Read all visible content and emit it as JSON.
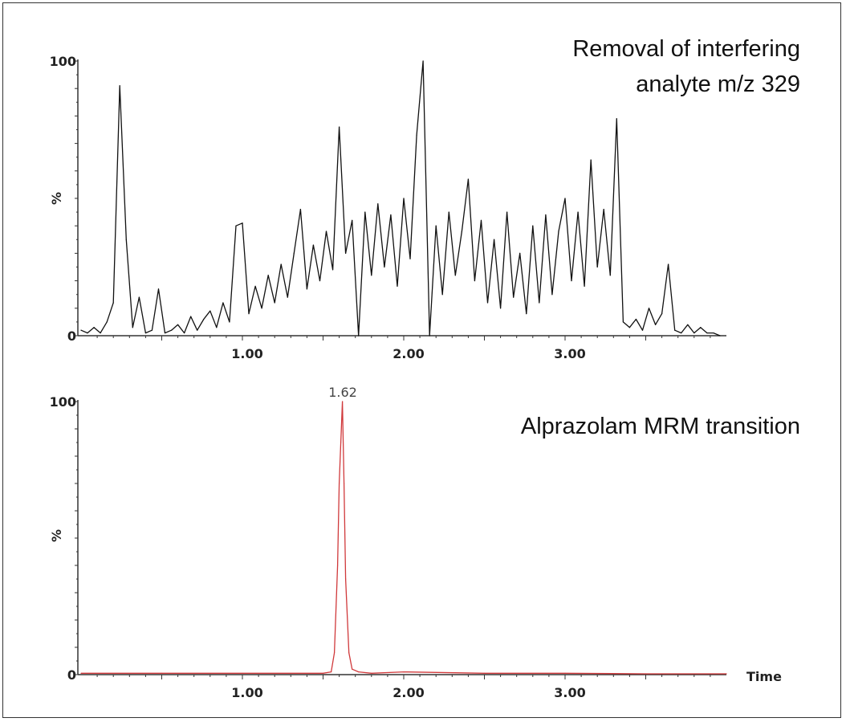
{
  "chart_data": [
    {
      "type": "line",
      "title": [
        "Removal of interfering",
        "analyte m/z 329"
      ],
      "xlabel": "",
      "ylabel": "%",
      "xlim": [
        0,
        4.0
      ],
      "ylim": [
        0,
        100
      ],
      "x_ticks": [
        "1.00",
        "2.00",
        "3.00"
      ],
      "x_tick_values": [
        1,
        2,
        3
      ],
      "y_ticks": [
        "0",
        "100"
      ],
      "y_tick_values": [
        0,
        100
      ],
      "grid": false,
      "color": "#111111",
      "series": [
        {
          "x": [
            0.0,
            0.04,
            0.08,
            0.12,
            0.16,
            0.2,
            0.24,
            0.28,
            0.32,
            0.36,
            0.4,
            0.44,
            0.48,
            0.52,
            0.56,
            0.6,
            0.64,
            0.68,
            0.72,
            0.76,
            0.8,
            0.84,
            0.88,
            0.92,
            0.96,
            1.0,
            1.04,
            1.08,
            1.12,
            1.16,
            1.2,
            1.24,
            1.28,
            1.32,
            1.36,
            1.4,
            1.44,
            1.48,
            1.52,
            1.56,
            1.6,
            1.64,
            1.68,
            1.72,
            1.76,
            1.8,
            1.84,
            1.88,
            1.92,
            1.96,
            2.0,
            2.04,
            2.08,
            2.12,
            2.16,
            2.2,
            2.24,
            2.28,
            2.32,
            2.36,
            2.4,
            2.44,
            2.48,
            2.52,
            2.56,
            2.6,
            2.64,
            2.68,
            2.72,
            2.76,
            2.8,
            2.84,
            2.88,
            2.92,
            2.96,
            3.0,
            3.04,
            3.08,
            3.12,
            3.16,
            3.2,
            3.24,
            3.28,
            3.32,
            3.36,
            3.4,
            3.44,
            3.48,
            3.52,
            3.56,
            3.6,
            3.64,
            3.68,
            3.72,
            3.76,
            3.8,
            3.84,
            3.88,
            3.92,
            3.96
          ],
          "y": [
            2,
            1,
            3,
            1,
            5,
            12,
            91,
            35,
            3,
            14,
            1,
            2,
            17,
            1,
            2,
            4,
            1,
            7,
            2,
            6,
            9,
            3,
            12,
            5,
            40,
            41,
            8,
            18,
            10,
            22,
            12,
            26,
            14,
            30,
            46,
            17,
            33,
            20,
            38,
            24,
            76,
            30,
            42,
            0,
            45,
            22,
            48,
            25,
            44,
            18,
            50,
            28,
            73,
            100,
            0,
            40,
            15,
            45,
            22,
            38,
            57,
            20,
            42,
            12,
            35,
            10,
            45,
            14,
            30,
            8,
            40,
            12,
            44,
            15,
            38,
            50,
            20,
            45,
            18,
            64,
            25,
            46,
            22,
            79,
            5,
            3,
            6,
            2,
            10,
            4,
            8,
            26,
            2,
            1,
            4,
            1,
            3,
            1,
            1,
            0
          ]
        }
      ]
    },
    {
      "type": "line",
      "title": "Alprazolam MRM transition",
      "xlabel": "Time",
      "ylabel": "%",
      "xlim": [
        0,
        4.0
      ],
      "ylim": [
        0,
        100
      ],
      "x_ticks": [
        "1.00",
        "2.00",
        "3.00"
      ],
      "x_tick_values": [
        1,
        2,
        3
      ],
      "y_ticks": [
        "0",
        "100"
      ],
      "y_tick_values": [
        0,
        100
      ],
      "grid": false,
      "color": "#d0393b",
      "annotations": [
        {
          "text": "1.62",
          "x": 1.62,
          "y": 100
        }
      ],
      "series": [
        {
          "x": [
            0.0,
            0.5,
            1.0,
            1.5,
            1.55,
            1.57,
            1.59,
            1.6,
            1.61,
            1.62,
            1.63,
            1.64,
            1.66,
            1.68,
            1.72,
            1.8,
            2.0,
            2.5,
            3.0,
            3.5,
            4.0
          ],
          "y": [
            0.5,
            0.5,
            0.5,
            0.5,
            1,
            8,
            40,
            70,
            85,
            100,
            70,
            35,
            8,
            2,
            1,
            0.5,
            1,
            0.5,
            0.5,
            0.3,
            0.3
          ]
        }
      ]
    }
  ]
}
